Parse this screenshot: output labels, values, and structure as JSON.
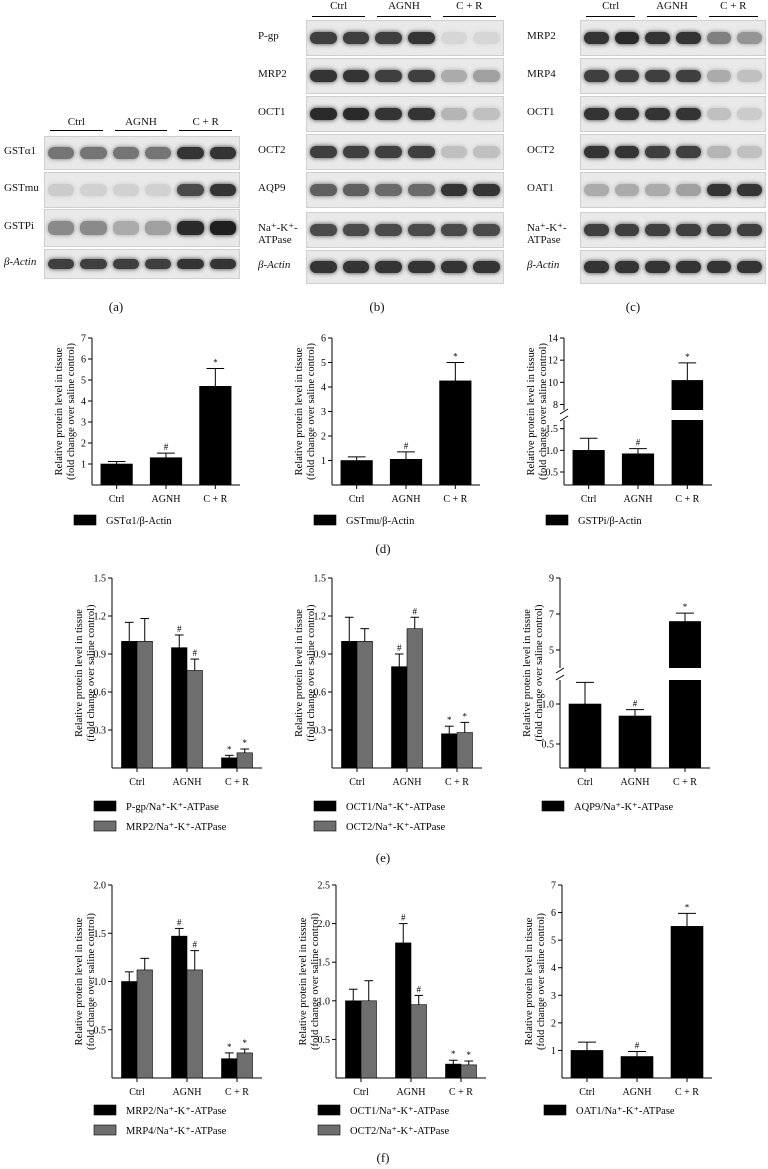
{
  "panel_letters": [
    "(a)",
    "(b)",
    "(c)",
    "(d)",
    "(e)",
    "(f)"
  ],
  "blots": {
    "a": {
      "groups": [
        "Ctrl",
        "AGNH",
        "C + R"
      ],
      "rows": [
        "GSTα1",
        "GSTmu",
        "GSTPi",
        "β-Actin"
      ]
    },
    "b": {
      "groups": [
        "Ctrl",
        "AGNH",
        "C + R"
      ],
      "rows": [
        "P-gp",
        "MRP2",
        "OCT1",
        "OCT2",
        "AQP9",
        "Na⁺-K⁺-ATPase",
        "β-Actin"
      ]
    },
    "c": {
      "groups": [
        "Ctrl",
        "AGNH",
        "C + R"
      ],
      "rows": [
        "MRP2",
        "MRP4",
        "OCT1",
        "OCT2",
        "OAT1",
        "Na⁺-K⁺-ATPase",
        "β-Actin"
      ]
    }
  },
  "ylabel_line1": "Relative protein level in tissue",
  "ylabel_line2": "(fold change over saline control)",
  "chart_data": [
    {
      "id": "d1",
      "type": "bar",
      "categories": [
        "Ctrl",
        "AGNH",
        "C + R"
      ],
      "ylim": [
        0,
        7
      ],
      "yticks": [
        1,
        2,
        3,
        4,
        5,
        6,
        7
      ],
      "series": [
        {
          "name": "GSTα1/β-Actin",
          "values": [
            1.0,
            1.3,
            4.7
          ],
          "errors": [
            0.12,
            0.22,
            0.85
          ],
          "color": "#000000",
          "marks": [
            "",
            "#",
            "*"
          ]
        }
      ]
    },
    {
      "id": "d2",
      "type": "bar",
      "categories": [
        "Ctrl",
        "AGNH",
        "C + R"
      ],
      "ylim": [
        0,
        6
      ],
      "yticks": [
        1,
        2,
        3,
        4,
        5,
        6
      ],
      "series": [
        {
          "name": "GSTmu/β-Actin",
          "values": [
            1.0,
            1.05,
            4.25
          ],
          "errors": [
            0.15,
            0.3,
            0.75
          ],
          "color": "#000000",
          "marks": [
            "",
            "#",
            "*"
          ]
        }
      ]
    },
    {
      "id": "d3",
      "type": "bar",
      "categories": [
        "Ctrl",
        "AGNH",
        "C + R"
      ],
      "ylim": [
        0,
        14
      ],
      "broken": true,
      "yticks": [
        0.5,
        1.0,
        1.5,
        8,
        10,
        12,
        14
      ],
      "series": [
        {
          "name": "GSTPi/β-Actin",
          "values": [
            1.0,
            0.92,
            10.2
          ],
          "errors": [
            0.28,
            0.12,
            1.55
          ],
          "color": "#000000",
          "marks": [
            "",
            "#",
            "*"
          ]
        }
      ]
    },
    {
      "id": "e1",
      "type": "bar",
      "categories": [
        "Ctrl",
        "AGNH",
        "C + R"
      ],
      "ylim": [
        0,
        1.5
      ],
      "yticks": [
        0.3,
        0.6,
        0.9,
        1.2,
        1.5
      ],
      "series": [
        {
          "name": "P-gp/Na⁺-K⁺-ATPase",
          "values": [
            1.0,
            0.95,
            0.08
          ],
          "errors": [
            0.15,
            0.1,
            0.02
          ],
          "color": "#000000",
          "marks": [
            "",
            "#",
            "*"
          ]
        },
        {
          "name": "MRP2/Na⁺-K⁺-ATPase",
          "values": [
            1.0,
            0.77,
            0.12
          ],
          "errors": [
            0.18,
            0.09,
            0.03
          ],
          "color": "#6e6e6e",
          "marks": [
            "",
            "#",
            "*"
          ]
        }
      ]
    },
    {
      "id": "e2",
      "type": "bar",
      "categories": [
        "Ctrl",
        "AGNH",
        "C + R"
      ],
      "ylim": [
        0,
        1.5
      ],
      "yticks": [
        0.3,
        0.6,
        0.9,
        1.2,
        1.5
      ],
      "series": [
        {
          "name": "OCT1/Na⁺-K⁺-ATPase",
          "values": [
            1.0,
            0.8,
            0.27
          ],
          "errors": [
            0.19,
            0.1,
            0.06
          ],
          "color": "#000000",
          "marks": [
            "",
            "#",
            "*"
          ]
        },
        {
          "name": "OCT2/Na⁺-K⁺-ATPase",
          "values": [
            1.0,
            1.1,
            0.28
          ],
          "errors": [
            0.1,
            0.09,
            0.08
          ],
          "color": "#6e6e6e",
          "marks": [
            "",
            "#",
            "*"
          ]
        }
      ]
    },
    {
      "id": "e3",
      "type": "bar",
      "categories": [
        "Ctrl",
        "AGNH",
        "C + R"
      ],
      "ylim": [
        0,
        9
      ],
      "broken": true,
      "yticks": [
        0.5,
        1.0,
        5,
        7,
        9
      ],
      "series": [
        {
          "name": "AQP9/Na⁺-K⁺-ATPase",
          "values": [
            1.0,
            0.85,
            6.6
          ],
          "errors": [
            0.27,
            0.08,
            0.45
          ],
          "color": "#000000",
          "marks": [
            "",
            "#",
            "*"
          ]
        }
      ]
    },
    {
      "id": "f1",
      "type": "bar",
      "categories": [
        "Ctrl",
        "AGNH",
        "C + R"
      ],
      "ylim": [
        0,
        2.0
      ],
      "yticks": [
        0.5,
        1.0,
        1.5,
        2.0
      ],
      "series": [
        {
          "name": "MRP2/Na⁺-K⁺-ATPase",
          "values": [
            1.0,
            1.47,
            0.2
          ],
          "errors": [
            0.1,
            0.08,
            0.06
          ],
          "color": "#000000",
          "marks": [
            "",
            "#",
            "*"
          ]
        },
        {
          "name": "MRP4/Na⁺-K⁺-ATPase",
          "values": [
            1.12,
            1.12,
            0.26
          ],
          "errors": [
            0.12,
            0.2,
            0.04
          ],
          "color": "#6e6e6e",
          "marks": [
            "",
            "#",
            "*"
          ]
        }
      ]
    },
    {
      "id": "f2",
      "type": "bar",
      "categories": [
        "Ctrl",
        "AGNH",
        "C + R"
      ],
      "ylim": [
        0,
        2.5
      ],
      "yticks": [
        0.5,
        1.0,
        1.5,
        2.0,
        2.5
      ],
      "series": [
        {
          "name": "OCT1/Na⁺-K⁺-ATPase",
          "values": [
            1.0,
            1.75,
            0.18
          ],
          "errors": [
            0.15,
            0.25,
            0.05
          ],
          "color": "#000000",
          "marks": [
            "",
            "#",
            "*"
          ]
        },
        {
          "name": "OCT2/Na⁺-K⁺-ATPase",
          "values": [
            1.0,
            0.95,
            0.17
          ],
          "errors": [
            0.26,
            0.12,
            0.05
          ],
          "color": "#6e6e6e",
          "marks": [
            "",
            "#",
            "*"
          ]
        }
      ]
    },
    {
      "id": "f3",
      "type": "bar",
      "categories": [
        "Ctrl",
        "AGNH",
        "C + R"
      ],
      "ylim": [
        0,
        7
      ],
      "yticks": [
        1,
        2,
        3,
        4,
        5,
        6,
        7
      ],
      "series": [
        {
          "name": "OAT1/Na⁺-K⁺-ATPase",
          "values": [
            1.0,
            0.78,
            5.5
          ],
          "errors": [
            0.3,
            0.18,
            0.47
          ],
          "color": "#000000",
          "marks": [
            "",
            "#",
            "*"
          ]
        }
      ]
    }
  ]
}
